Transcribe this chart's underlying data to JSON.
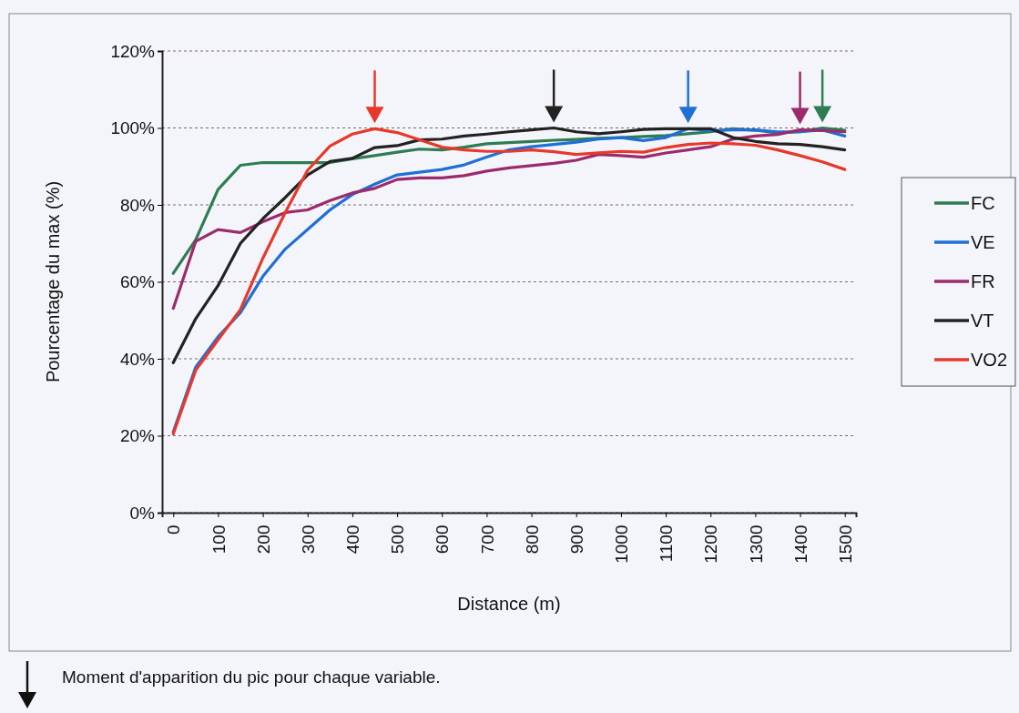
{
  "chart_data": {
    "type": "line",
    "xlabel": "Distance (m)",
    "ylabel": "Pourcentage du max (%)",
    "x": [
      0,
      50,
      100,
      150,
      200,
      250,
      300,
      350,
      400,
      450,
      500,
      550,
      600,
      650,
      700,
      750,
      800,
      850,
      900,
      950,
      1000,
      1050,
      1100,
      1150,
      1200,
      1250,
      1300,
      1350,
      1400,
      1450,
      1500
    ],
    "series": [
      {
        "name": "FC",
        "color": "#2e7d52",
        "values": [
          62.2,
          70.9,
          84,
          90.3,
          91,
          91,
          91,
          91,
          92,
          92.8,
          93.7,
          94.5,
          94.3,
          95,
          95.9,
          96.2,
          96.5,
          96.8,
          97,
          97.3,
          97.5,
          97.8,
          98,
          98.5,
          99,
          99.8,
          99.4,
          98.7,
          99,
          100,
          99.4
        ]
      },
      {
        "name": "VE",
        "color": "#1f6fd6",
        "values": [
          21,
          37.8,
          45.7,
          52,
          61.4,
          68.5,
          73.6,
          78.7,
          82.7,
          85.4,
          87.8,
          88.5,
          89.2,
          90.4,
          92.4,
          94.3,
          95.1,
          95.7,
          96.3,
          97.1,
          97.5,
          96.7,
          97.5,
          99.8,
          99.3,
          99.5,
          99.5,
          99,
          99,
          99.5,
          97.9
        ]
      },
      {
        "name": "FR",
        "color": "#9b2b6b",
        "values": [
          53.1,
          70.5,
          73.6,
          72.8,
          75.6,
          78,
          78.7,
          81.1,
          83.1,
          84.3,
          86.6,
          87,
          87,
          87.6,
          88.8,
          89.6,
          90.2,
          90.8,
          91.6,
          93.1,
          92.8,
          92.4,
          93.5,
          94.3,
          95.1,
          97.1,
          97.9,
          98.3,
          99.5,
          99.3,
          99
        ]
      },
      {
        "name": "VT",
        "color": "#222222",
        "values": [
          39,
          50.4,
          59,
          70,
          76.4,
          81.9,
          87.8,
          91.3,
          92.1,
          94.9,
          95.4,
          96.9,
          97.1,
          97.9,
          98.4,
          99,
          99.5,
          100,
          99,
          98.5,
          99,
          99.6,
          99.8,
          99.8,
          99.8,
          97.5,
          96.5,
          95.9,
          95.7,
          95.1,
          94.3
        ]
      },
      {
        "name": "VO2",
        "color": "#e8382a",
        "values": [
          20.5,
          37,
          44.9,
          52.8,
          66.1,
          78,
          89,
          95.3,
          98.4,
          99.8,
          98.8,
          96.9,
          95,
          94.3,
          93.9,
          93.9,
          94.3,
          93.8,
          93.1,
          93.5,
          93.9,
          93.7,
          94.9,
          95.7,
          96.1,
          95.9,
          95.5,
          94.3,
          92.8,
          91.2,
          89.2
        ]
      }
    ],
    "xlim": [
      -25,
      1525
    ],
    "xticks": [
      0,
      100,
      200,
      300,
      400,
      500,
      600,
      700,
      800,
      900,
      1000,
      1100,
      1200,
      1300,
      1400,
      1500
    ],
    "ylim": [
      0,
      120
    ],
    "yticks": [
      {
        "value": 0,
        "label": "0%"
      },
      {
        "value": 20,
        "label": "20%"
      },
      {
        "value": 40,
        "label": "40%"
      },
      {
        "value": 60,
        "label": "60%"
      },
      {
        "value": 80,
        "label": "80%"
      },
      {
        "value": 100,
        "label": "100%"
      },
      {
        "value": 120,
        "label": "120%"
      }
    ],
    "grid": "y",
    "legend": "right",
    "marker": "none",
    "line_style": "solid",
    "annotations": [
      "Moment d'apparition du pic pour chaque variable."
    ]
  }
}
